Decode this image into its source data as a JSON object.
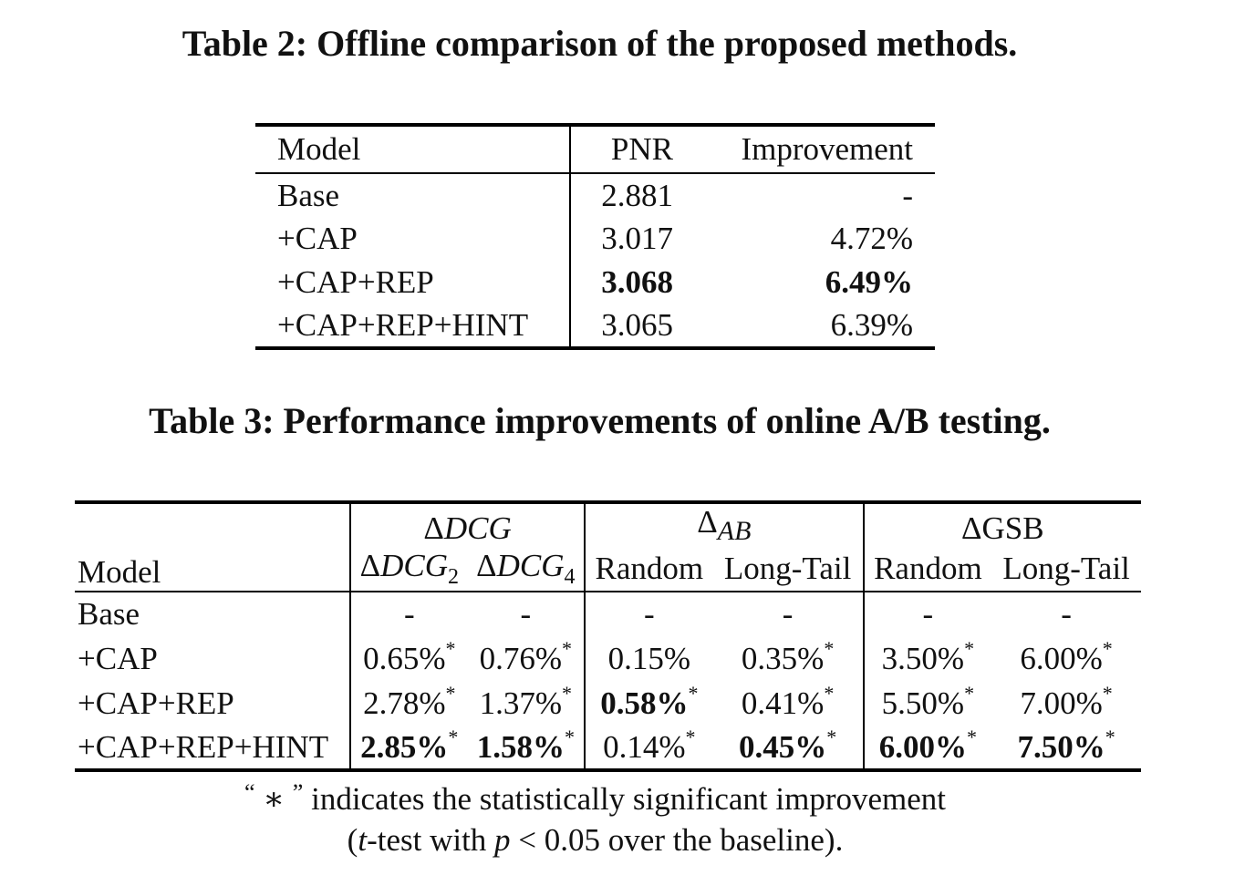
{
  "table2": {
    "caption": "Table 2: Offline comparison of the proposed methods.",
    "headers": [
      "Model",
      "PNR",
      "Improvement"
    ],
    "rows": [
      {
        "model": "Base",
        "pnr": "2.881",
        "improvement": "-"
      },
      {
        "model": "+CAP",
        "pnr": "3.017",
        "improvement": "4.72%"
      },
      {
        "model": "+CAP+REP",
        "pnr": "3.068",
        "improvement": "6.49%"
      },
      {
        "model": "+CAP+REP+HINT",
        "pnr": "3.065",
        "improvement": "6.39%"
      }
    ]
  },
  "table3": {
    "caption": "Table 3: Performance improvements of online A/B testing.",
    "model_header": "Model",
    "groups": {
      "dcg": {
        "delta": "Δ",
        "name": "DCG"
      },
      "ab": {
        "delta": "Δ",
        "name": "AB"
      },
      "gsb": {
        "label": "ΔGSB"
      }
    },
    "subheaders": {
      "dcg2": {
        "delta": "Δ",
        "name": "DCG",
        "sub": "2"
      },
      "dcg4": {
        "delta": "Δ",
        "name": "DCG",
        "sub": "4"
      },
      "ab_random": "Random",
      "ab_longtail": "Long-Tail",
      "gsb_random": "Random",
      "gsb_longtail": "Long-Tail"
    },
    "significance_mark": "*",
    "rows": [
      {
        "model": "Base",
        "values": [
          "-",
          "-",
          "-",
          "-",
          "-",
          "-"
        ]
      },
      {
        "model": "+CAP",
        "values": [
          "0.65%",
          "0.76%",
          "0.15%",
          "0.35%",
          "3.50%",
          "6.00%"
        ]
      },
      {
        "model": "+CAP+REP",
        "values": [
          "2.78%",
          "1.37%",
          "0.58%",
          "0.41%",
          "5.50%",
          "7.00%"
        ]
      },
      {
        "model": "+CAP+REP+HINT",
        "values": [
          "2.85%",
          "1.58%",
          "0.14%",
          "0.45%",
          "6.00%",
          "7.50%"
        ]
      }
    ]
  },
  "footnote": {
    "open_quote": "“",
    "symbol": "∗",
    "close_quote": "”",
    "line1_text": " indicates the statistically significant improvement",
    "line2_open": "(",
    "t_var": "t",
    "line2_mid": "-test with ",
    "p_var": "p",
    "line2_end": " < 0.05 over the baseline)."
  }
}
